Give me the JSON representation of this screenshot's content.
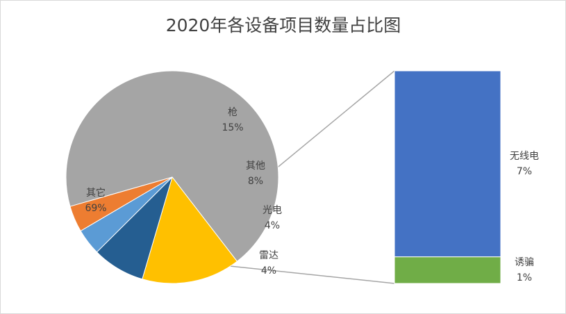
{
  "chart_data": {
    "type": "pie",
    "variant": "bar-of-pie",
    "title": "2020年各设备项目数量占比图",
    "slices": [
      {
        "name": "其它",
        "value": 69,
        "label": "69%",
        "color": "#a5a5a5"
      },
      {
        "name": "枪",
        "value": 15,
        "label": "15%",
        "color": "#ffc000"
      },
      {
        "name": "其他",
        "value": 8,
        "label": "8%",
        "color": "#255e91"
      },
      {
        "name": "光电",
        "value": 4,
        "label": "4%",
        "color": "#5b9bd5"
      },
      {
        "name": "雷达",
        "value": 4,
        "label": "4%",
        "color": "#ed7d31"
      }
    ],
    "breakout": {
      "source_slice": "其他",
      "segments": [
        {
          "name": "无线电",
          "value": 7,
          "label": "7%",
          "color": "#4472c4"
        },
        {
          "name": "诱骗",
          "value": 1,
          "label": "1%",
          "color": "#70ad47"
        }
      ]
    },
    "legend": "none"
  }
}
